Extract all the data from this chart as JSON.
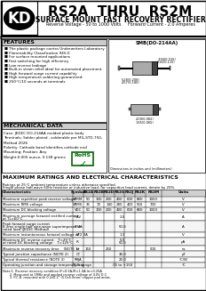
{
  "title_main": "RS2A  THRU  RS2M",
  "title_sub": "SURFACE MOUNT FAST RECOVERY RECTIFIER",
  "title_sub2": "Reverse Voltage - 50 to 1000 Volts     Forward Current - 2.0 Amperes",
  "features_title": "FEATURES",
  "features": [
    "The plastic package carries Underwriters Laboratory",
    "Flammability Classification 94V-0",
    "For surface mounted applications",
    "Fast switching for high efficiency",
    "Low reverse leakage",
    "Built-in strain relief,ideal for automated placement",
    "High forward surge current capability",
    "High temperature soldering guaranteed:",
    "250°C/10 seconds at terminals"
  ],
  "mech_title": "MECHANICAL DATA",
  "mech_data": [
    "Case: JEDEC DO-214AA molded plastic body",
    "Terminals: Solder plated , solderable per MIL-STD-750,",
    "Method 2026",
    "Polarity: Cathode band identifies cathode end",
    "Mounting: Position: Any",
    "Weight:0.005 ounce, 0.138 grams"
  ],
  "pkg_label": "SMB(DO-214AA)",
  "table_title": "MAXIMUM RATINGS AND ELECTRICAL CHARACTERISTICS",
  "table_note1": "Ratings at 25°C ambient temperature unless otherwise specified.",
  "table_note2": "Single phase half-wave 60Hz resistive or inductive load, for capacitive load current, derate by 20%.",
  "col_headers": [
    "Characteristic",
    "Symbol",
    "RS2A",
    "RS2B",
    "RS2D",
    "RS2G",
    "RS2J",
    "RS2K",
    "RS2M",
    "Units"
  ],
  "bg_color": "#ffffff",
  "rohs_color": "#008000"
}
